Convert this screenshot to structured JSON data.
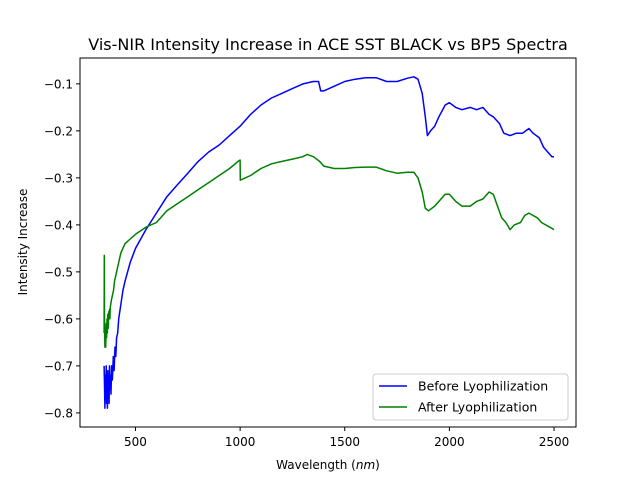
{
  "chart_data": {
    "type": "line",
    "title": "Vis-NIR Intensity Increase in ACE SST BLACK vs BP5 Spectra",
    "xlabel_prefix": "Wavelength (",
    "xlabel_unit": "nm",
    "xlabel_suffix": ")",
    "ylabel": "Intensity Increase",
    "xlim": [
      235,
      2605
    ],
    "ylim": [
      -0.83,
      -0.045
    ],
    "xticks": [
      500,
      1000,
      1500,
      2000,
      2500
    ],
    "yticks": [
      -0.8,
      -0.7,
      -0.6,
      -0.5,
      -0.4,
      -0.3,
      -0.2,
      -0.1
    ],
    "legend_position": "lower-right",
    "series": [
      {
        "name": "Before Lyophilization",
        "color": "#0000ff",
        "points": [
          [
            350,
            -0.7
          ],
          [
            352,
            -0.74
          ],
          [
            354,
            -0.79
          ],
          [
            356,
            -0.72
          ],
          [
            358,
            -0.77
          ],
          [
            360,
            -0.7
          ],
          [
            362,
            -0.78
          ],
          [
            364,
            -0.74
          ],
          [
            366,
            -0.79
          ],
          [
            368,
            -0.71
          ],
          [
            370,
            -0.76
          ],
          [
            372,
            -0.73
          ],
          [
            374,
            -0.78
          ],
          [
            376,
            -0.7
          ],
          [
            378,
            -0.75
          ],
          [
            380,
            -0.72
          ],
          [
            383,
            -0.76
          ],
          [
            386,
            -0.7
          ],
          [
            390,
            -0.73
          ],
          [
            394,
            -0.68
          ],
          [
            398,
            -0.71
          ],
          [
            402,
            -0.66
          ],
          [
            406,
            -0.68
          ],
          [
            410,
            -0.64
          ],
          [
            415,
            -0.63
          ],
          [
            420,
            -0.6
          ],
          [
            430,
            -0.57
          ],
          [
            440,
            -0.54
          ],
          [
            450,
            -0.52
          ],
          [
            475,
            -0.48
          ],
          [
            500,
            -0.45
          ],
          [
            550,
            -0.41
          ],
          [
            600,
            -0.375
          ],
          [
            650,
            -0.34
          ],
          [
            700,
            -0.315
          ],
          [
            750,
            -0.29
          ],
          [
            800,
            -0.265
          ],
          [
            850,
            -0.245
          ],
          [
            900,
            -0.23
          ],
          [
            950,
            -0.21
          ],
          [
            1000,
            -0.19
          ],
          [
            1050,
            -0.165
          ],
          [
            1100,
            -0.145
          ],
          [
            1150,
            -0.13
          ],
          [
            1200,
            -0.12
          ],
          [
            1250,
            -0.11
          ],
          [
            1300,
            -0.1
          ],
          [
            1350,
            -0.095
          ],
          [
            1375,
            -0.095
          ],
          [
            1385,
            -0.115
          ],
          [
            1400,
            -0.115
          ],
          [
            1450,
            -0.105
          ],
          [
            1500,
            -0.095
          ],
          [
            1550,
            -0.09
          ],
          [
            1600,
            -0.087
          ],
          [
            1650,
            -0.087
          ],
          [
            1700,
            -0.095
          ],
          [
            1750,
            -0.095
          ],
          [
            1800,
            -0.088
          ],
          [
            1830,
            -0.085
          ],
          [
            1850,
            -0.09
          ],
          [
            1870,
            -0.12
          ],
          [
            1885,
            -0.17
          ],
          [
            1895,
            -0.21
          ],
          [
            1910,
            -0.2
          ],
          [
            1930,
            -0.19
          ],
          [
            1950,
            -0.17
          ],
          [
            1980,
            -0.145
          ],
          [
            2000,
            -0.14
          ],
          [
            2030,
            -0.15
          ],
          [
            2060,
            -0.155
          ],
          [
            2100,
            -0.15
          ],
          [
            2130,
            -0.155
          ],
          [
            2160,
            -0.15
          ],
          [
            2190,
            -0.165
          ],
          [
            2210,
            -0.17
          ],
          [
            2240,
            -0.185
          ],
          [
            2260,
            -0.205
          ],
          [
            2290,
            -0.21
          ],
          [
            2320,
            -0.205
          ],
          [
            2350,
            -0.205
          ],
          [
            2380,
            -0.195
          ],
          [
            2400,
            -0.205
          ],
          [
            2430,
            -0.215
          ],
          [
            2450,
            -0.235
          ],
          [
            2470,
            -0.245
          ],
          [
            2480,
            -0.25
          ],
          [
            2490,
            -0.255
          ],
          [
            2500,
            -0.255
          ]
        ]
      },
      {
        "name": "After Lyophilization",
        "color": "#008000",
        "points": [
          [
            350,
            -0.63
          ],
          [
            351,
            -0.465
          ],
          [
            352,
            -0.6
          ],
          [
            354,
            -0.66
          ],
          [
            356,
            -0.62
          ],
          [
            358,
            -0.66
          ],
          [
            360,
            -0.61
          ],
          [
            362,
            -0.64
          ],
          [
            364,
            -0.6
          ],
          [
            366,
            -0.63
          ],
          [
            368,
            -0.59
          ],
          [
            370,
            -0.62
          ],
          [
            372,
            -0.585
          ],
          [
            374,
            -0.6
          ],
          [
            376,
            -0.58
          ],
          [
            378,
            -0.6
          ],
          [
            380,
            -0.575
          ],
          [
            385,
            -0.56
          ],
          [
            390,
            -0.55
          ],
          [
            395,
            -0.54
          ],
          [
            400,
            -0.52
          ],
          [
            410,
            -0.5
          ],
          [
            420,
            -0.48
          ],
          [
            430,
            -0.46
          ],
          [
            450,
            -0.44
          ],
          [
            475,
            -0.43
          ],
          [
            500,
            -0.42
          ],
          [
            550,
            -0.405
          ],
          [
            600,
            -0.395
          ],
          [
            650,
            -0.37
          ],
          [
            700,
            -0.355
          ],
          [
            750,
            -0.34
          ],
          [
            800,
            -0.325
          ],
          [
            850,
            -0.31
          ],
          [
            900,
            -0.295
          ],
          [
            950,
            -0.28
          ],
          [
            990,
            -0.265
          ],
          [
            1000,
            -0.262
          ],
          [
            1001,
            -0.305
          ],
          [
            1050,
            -0.295
          ],
          [
            1100,
            -0.28
          ],
          [
            1150,
            -0.27
          ],
          [
            1200,
            -0.265
          ],
          [
            1250,
            -0.26
          ],
          [
            1300,
            -0.255
          ],
          [
            1320,
            -0.25
          ],
          [
            1350,
            -0.255
          ],
          [
            1380,
            -0.265
          ],
          [
            1400,
            -0.275
          ],
          [
            1450,
            -0.28
          ],
          [
            1500,
            -0.28
          ],
          [
            1550,
            -0.278
          ],
          [
            1600,
            -0.277
          ],
          [
            1650,
            -0.277
          ],
          [
            1700,
            -0.285
          ],
          [
            1750,
            -0.29
          ],
          [
            1800,
            -0.288
          ],
          [
            1830,
            -0.288
          ],
          [
            1850,
            -0.3
          ],
          [
            1870,
            -0.33
          ],
          [
            1885,
            -0.365
          ],
          [
            1900,
            -0.37
          ],
          [
            1930,
            -0.36
          ],
          [
            1950,
            -0.35
          ],
          [
            1980,
            -0.335
          ],
          [
            2000,
            -0.335
          ],
          [
            2030,
            -0.35
          ],
          [
            2060,
            -0.36
          ],
          [
            2100,
            -0.36
          ],
          [
            2130,
            -0.35
          ],
          [
            2160,
            -0.345
          ],
          [
            2190,
            -0.33
          ],
          [
            2210,
            -0.335
          ],
          [
            2230,
            -0.36
          ],
          [
            2250,
            -0.385
          ],
          [
            2270,
            -0.395
          ],
          [
            2290,
            -0.41
          ],
          [
            2310,
            -0.4
          ],
          [
            2340,
            -0.395
          ],
          [
            2360,
            -0.38
          ],
          [
            2380,
            -0.375
          ],
          [
            2400,
            -0.38
          ],
          [
            2420,
            -0.385
          ],
          [
            2440,
            -0.395
          ],
          [
            2460,
            -0.4
          ],
          [
            2480,
            -0.405
          ],
          [
            2500,
            -0.41
          ]
        ]
      }
    ]
  }
}
